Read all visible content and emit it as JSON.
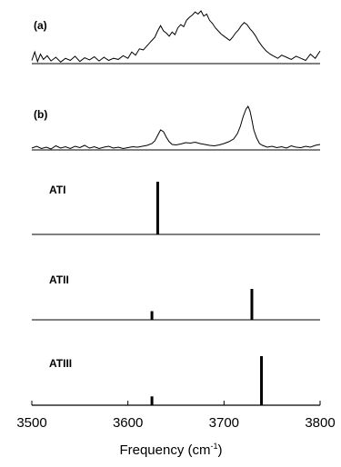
{
  "chart_data": {
    "type": "line",
    "xlabel": "Frequency (cm",
    "xlabel_sup": "-1",
    "xlabel_end": ")",
    "xlim": [
      3500,
      3800
    ],
    "x_ticks": [
      "3500",
      "3600",
      "3700",
      "3800"
    ],
    "x_tick_values": [
      3500,
      3600,
      3700,
      3800
    ],
    "panels": [
      {
        "label": "(a)",
        "kind": "spectrum",
        "points": [
          [
            3500,
            0.06
          ],
          [
            3503,
            0.22
          ],
          [
            3506,
            0.04
          ],
          [
            3509,
            0.18
          ],
          [
            3512,
            0.08
          ],
          [
            3516,
            0.15
          ],
          [
            3520,
            0.05
          ],
          [
            3525,
            0.12
          ],
          [
            3530,
            0.03
          ],
          [
            3535,
            0.1
          ],
          [
            3540,
            0.06
          ],
          [
            3545,
            0.14
          ],
          [
            3550,
            0.04
          ],
          [
            3555,
            0.11
          ],
          [
            3560,
            0.07
          ],
          [
            3565,
            0.13
          ],
          [
            3570,
            0.05
          ],
          [
            3575,
            0.12
          ],
          [
            3580,
            0.06
          ],
          [
            3585,
            0.1
          ],
          [
            3590,
            0.08
          ],
          [
            3595,
            0.15
          ],
          [
            3600,
            0.1
          ],
          [
            3604,
            0.22
          ],
          [
            3608,
            0.16
          ],
          [
            3612,
            0.28
          ],
          [
            3616,
            0.26
          ],
          [
            3620,
            0.34
          ],
          [
            3624,
            0.42
          ],
          [
            3628,
            0.5
          ],
          [
            3631,
            0.62
          ],
          [
            3634,
            0.72
          ],
          [
            3637,
            0.62
          ],
          [
            3640,
            0.58
          ],
          [
            3643,
            0.52
          ],
          [
            3646,
            0.6
          ],
          [
            3649,
            0.55
          ],
          [
            3652,
            0.68
          ],
          [
            3655,
            0.74
          ],
          [
            3658,
            0.7
          ],
          [
            3661,
            0.82
          ],
          [
            3664,
            0.88
          ],
          [
            3667,
            0.92
          ],
          [
            3670,
            0.98
          ],
          [
            3673,
            0.94
          ],
          [
            3676,
            1.0
          ],
          [
            3679,
            0.9
          ],
          [
            3682,
            0.94
          ],
          [
            3685,
            0.82
          ],
          [
            3688,
            0.76
          ],
          [
            3691,
            0.68
          ],
          [
            3694,
            0.62
          ],
          [
            3697,
            0.56
          ],
          [
            3700,
            0.52
          ],
          [
            3703,
            0.48
          ],
          [
            3706,
            0.44
          ],
          [
            3709,
            0.5
          ],
          [
            3712,
            0.58
          ],
          [
            3715,
            0.64
          ],
          [
            3718,
            0.72
          ],
          [
            3721,
            0.78
          ],
          [
            3724,
            0.74
          ],
          [
            3727,
            0.66
          ],
          [
            3730,
            0.6
          ],
          [
            3733,
            0.52
          ],
          [
            3736,
            0.42
          ],
          [
            3740,
            0.32
          ],
          [
            3744,
            0.24
          ],
          [
            3748,
            0.18
          ],
          [
            3752,
            0.14
          ],
          [
            3756,
            0.1
          ],
          [
            3760,
            0.16
          ],
          [
            3765,
            0.12
          ],
          [
            3770,
            0.08
          ],
          [
            3775,
            0.14
          ],
          [
            3780,
            0.1
          ],
          [
            3785,
            0.06
          ],
          [
            3790,
            0.18
          ],
          [
            3795,
            0.1
          ],
          [
            3800,
            0.24
          ]
        ]
      },
      {
        "label": "(b)",
        "kind": "spectrum",
        "points": [
          [
            3500,
            0.04
          ],
          [
            3505,
            0.08
          ],
          [
            3510,
            0.03
          ],
          [
            3515,
            0.06
          ],
          [
            3520,
            0.02
          ],
          [
            3525,
            0.09
          ],
          [
            3530,
            0.04
          ],
          [
            3535,
            0.07
          ],
          [
            3540,
            0.03
          ],
          [
            3545,
            0.08
          ],
          [
            3550,
            0.05
          ],
          [
            3555,
            0.1
          ],
          [
            3560,
            0.04
          ],
          [
            3565,
            0.07
          ],
          [
            3570,
            0.03
          ],
          [
            3575,
            0.06
          ],
          [
            3580,
            0.08
          ],
          [
            3585,
            0.04
          ],
          [
            3590,
            0.06
          ],
          [
            3595,
            0.03
          ],
          [
            3600,
            0.05
          ],
          [
            3605,
            0.07
          ],
          [
            3610,
            0.06
          ],
          [
            3615,
            0.08
          ],
          [
            3620,
            0.1
          ],
          [
            3625,
            0.14
          ],
          [
            3628,
            0.2
          ],
          [
            3631,
            0.32
          ],
          [
            3634,
            0.44
          ],
          [
            3637,
            0.4
          ],
          [
            3640,
            0.28
          ],
          [
            3643,
            0.18
          ],
          [
            3646,
            0.12
          ],
          [
            3650,
            0.11
          ],
          [
            3655,
            0.13
          ],
          [
            3660,
            0.16
          ],
          [
            3665,
            0.15
          ],
          [
            3670,
            0.17
          ],
          [
            3675,
            0.14
          ],
          [
            3680,
            0.12
          ],
          [
            3685,
            0.1
          ],
          [
            3690,
            0.09
          ],
          [
            3695,
            0.11
          ],
          [
            3700,
            0.14
          ],
          [
            3705,
            0.18
          ],
          [
            3710,
            0.24
          ],
          [
            3714,
            0.36
          ],
          [
            3717,
            0.52
          ],
          [
            3720,
            0.74
          ],
          [
            3723,
            0.9
          ],
          [
            3725,
            0.96
          ],
          [
            3727,
            0.86
          ],
          [
            3729,
            0.66
          ],
          [
            3731,
            0.44
          ],
          [
            3734,
            0.26
          ],
          [
            3737,
            0.14
          ],
          [
            3740,
            0.1
          ],
          [
            3745,
            0.06
          ],
          [
            3750,
            0.08
          ],
          [
            3755,
            0.05
          ],
          [
            3760,
            0.07
          ],
          [
            3765,
            0.04
          ],
          [
            3770,
            0.09
          ],
          [
            3775,
            0.06
          ],
          [
            3780,
            0.05
          ],
          [
            3785,
            0.08
          ],
          [
            3790,
            0.06
          ],
          [
            3795,
            0.1
          ],
          [
            3800,
            0.12
          ]
        ]
      },
      {
        "label": "ATI",
        "kind": "sticks",
        "sticks": [
          {
            "x": 3631,
            "y": 1.0
          }
        ]
      },
      {
        "label": "ATII",
        "kind": "sticks",
        "sticks": [
          {
            "x": 3625,
            "y": 0.28
          },
          {
            "x": 3729,
            "y": 1.0
          }
        ]
      },
      {
        "label": "ATIII",
        "kind": "sticks",
        "sticks": [
          {
            "x": 3625,
            "y": 0.18
          },
          {
            "x": 3739,
            "y": 1.0
          }
        ]
      }
    ]
  }
}
